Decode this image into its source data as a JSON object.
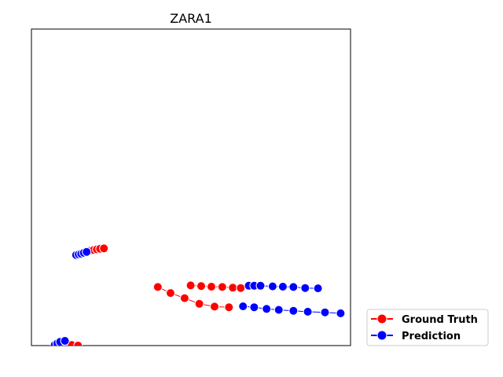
{
  "chart_data": {
    "type": "scatter",
    "title": "ZARA1",
    "xlabel": "",
    "ylabel": "",
    "xlim": [
      0,
      100
    ],
    "ylim": [
      0,
      100
    ],
    "grid": false,
    "axis_ticks": false,
    "legend_position": "outside-bottom-right",
    "series": [
      {
        "name": "Ground Truth",
        "color": "#ff0000",
        "tracks": [
          [
            [
              18.5,
              30.0
            ],
            [
              19.5,
              30.2
            ],
            [
              20.5,
              30.4
            ],
            [
              21.5,
              30.6
            ],
            [
              22.7,
              30.7
            ]
          ],
          [
            [
              39.6,
              18.5
            ],
            [
              43.6,
              16.6
            ],
            [
              48.0,
              15.0
            ],
            [
              52.6,
              13.2
            ],
            [
              57.4,
              12.3
            ],
            [
              61.9,
              12.1
            ]
          ],
          [
            [
              49.9,
              19.0
            ],
            [
              53.2,
              18.8
            ],
            [
              56.4,
              18.6
            ],
            [
              59.8,
              18.5
            ],
            [
              63.1,
              18.3
            ],
            [
              65.6,
              18.2
            ]
          ],
          [
            [
              8.4,
              0.5
            ],
            [
              9.6,
              0.4
            ],
            [
              11.1,
              0.3
            ],
            [
              12.6,
              0.2
            ],
            [
              14.6,
              0.0
            ]
          ]
        ]
      },
      {
        "name": "Prediction",
        "color": "#0000ff",
        "tracks": [
          [
            [
              14.0,
              28.6
            ],
            [
              14.8,
              28.8
            ],
            [
              15.6,
              29.0
            ],
            [
              16.4,
              29.3
            ],
            [
              17.3,
              29.6
            ]
          ],
          [
            [
              66.3,
              12.4
            ],
            [
              69.8,
              12.1
            ],
            [
              73.7,
              11.6
            ],
            [
              77.5,
              11.3
            ],
            [
              82.1,
              11.0
            ],
            [
              86.6,
              10.7
            ],
            [
              92.0,
              10.5
            ],
            [
              96.9,
              10.2
            ]
          ],
          [
            [
              68.1,
              18.9
            ],
            [
              69.8,
              18.9
            ],
            [
              71.8,
              18.9
            ],
            [
              75.6,
              18.7
            ],
            [
              78.8,
              18.6
            ],
            [
              82.1,
              18.5
            ],
            [
              85.8,
              18.2
            ],
            [
              89.8,
              18.1
            ]
          ],
          [
            [
              7.3,
              0.2
            ],
            [
              8.1,
              0.7
            ],
            [
              9.0,
              1.2
            ],
            [
              10.5,
              1.5
            ]
          ]
        ]
      }
    ]
  }
}
